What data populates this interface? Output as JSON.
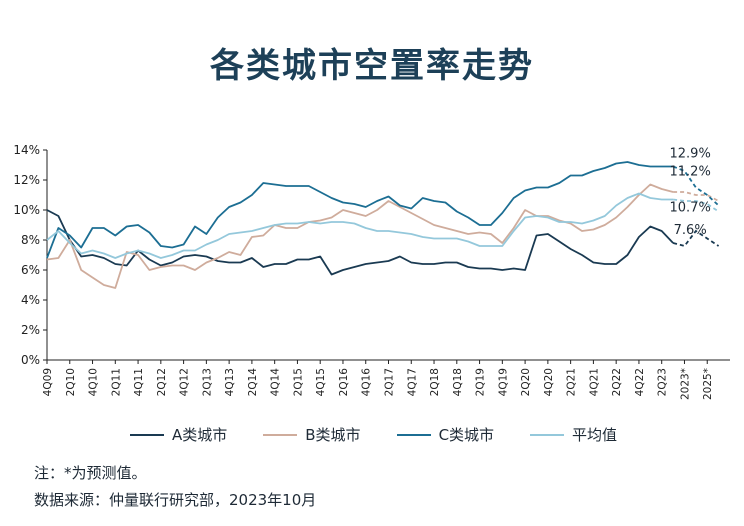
{
  "title": "各类城市空置率走势",
  "note": "注：*为预测值。",
  "source": "数据来源：仲量联行研究部，2023年10月",
  "chart_data": {
    "type": "line",
    "title": "各类城市空置率走势",
    "ylim": [
      0,
      14
    ],
    "yticks": [
      "0%",
      "2%",
      "4%",
      "6%",
      "8%",
      "10%",
      "12%",
      "14%"
    ],
    "ytick_values": [
      0,
      2,
      4,
      6,
      8,
      10,
      12,
      14
    ],
    "x_labels": [
      "4Q09",
      "2Q10",
      "4Q10",
      "2Q11",
      "4Q11",
      "2Q12",
      "4Q12",
      "2Q13",
      "4Q13",
      "2Q14",
      "4Q14",
      "2Q15",
      "4Q15",
      "2Q16",
      "4Q16",
      "2Q17",
      "4Q17",
      "2Q18",
      "4Q18",
      "2Q19",
      "4Q19",
      "2Q20",
      "4Q20",
      "2Q21",
      "4Q21",
      "2Q22",
      "4Q22",
      "2Q23",
      "2023*",
      "2025*"
    ],
    "x_label_positions": [
      0,
      2,
      4,
      6,
      8,
      10,
      12,
      14,
      16,
      18,
      20,
      22,
      24,
      26,
      28,
      30,
      32,
      34,
      36,
      38,
      40,
      42,
      44,
      46,
      48,
      50,
      52,
      54,
      56,
      58
    ],
    "forecast_start": 55,
    "x_max": 60,
    "annotations": [
      "12.9%",
      "11.2%",
      "10.7%",
      "7.6%"
    ],
    "grid": false,
    "legend_position": "bottom",
    "series": [
      {
        "name": "A类城市",
        "color": "#1a3a52",
        "values": [
          10.0,
          9.6,
          8.0,
          6.9,
          7.0,
          6.8,
          6.4,
          6.3,
          7.3,
          6.7,
          6.3,
          6.5,
          6.9,
          7.0,
          6.9,
          6.6,
          6.5,
          6.5,
          6.8,
          6.2,
          6.4,
          6.4,
          6.7,
          6.7,
          6.9,
          5.7,
          6.0,
          6.2,
          6.4,
          6.5,
          6.6,
          6.9,
          6.5,
          6.4,
          6.4,
          6.5,
          6.5,
          6.2,
          6.1,
          6.1,
          6.0,
          6.1,
          6.0,
          8.3,
          8.4,
          7.9,
          7.4,
          7.0,
          6.5,
          6.4,
          6.4,
          7.0,
          8.2,
          8.9,
          8.6,
          7.8,
          7.6,
          8.6,
          8.1,
          7.6
        ]
      },
      {
        "name": "B类城市",
        "color": "#cfac9c",
        "values": [
          6.7,
          6.8,
          8.0,
          6.0,
          5.5,
          5.0,
          4.8,
          7.2,
          7.0,
          6.0,
          6.2,
          6.3,
          6.3,
          6.0,
          6.5,
          6.8,
          7.2,
          7.0,
          8.2,
          8.3,
          9.0,
          8.8,
          8.8,
          9.2,
          9.3,
          9.5,
          10.0,
          9.8,
          9.6,
          10.0,
          10.6,
          10.2,
          9.8,
          9.4,
          9.0,
          8.8,
          8.6,
          8.4,
          8.5,
          8.4,
          7.8,
          8.8,
          10.0,
          9.6,
          9.6,
          9.3,
          9.1,
          8.6,
          8.7,
          9.0,
          9.5,
          10.2,
          11.0,
          11.7,
          11.4,
          11.2,
          11.2,
          11.0,
          11.0,
          10.6
        ]
      },
      {
        "name": "C类城市",
        "color": "#1c6e93",
        "values": [
          6.8,
          8.8,
          8.3,
          7.5,
          8.8,
          8.8,
          8.3,
          8.9,
          9.0,
          8.5,
          7.6,
          7.5,
          7.7,
          8.9,
          8.4,
          9.5,
          10.2,
          10.5,
          11.0,
          11.8,
          11.7,
          11.6,
          11.6,
          11.6,
          11.2,
          10.8,
          10.5,
          10.4,
          10.2,
          10.6,
          10.9,
          10.3,
          10.1,
          10.8,
          10.6,
          10.5,
          9.9,
          9.5,
          9.0,
          9.0,
          9.8,
          10.8,
          11.3,
          11.5,
          11.5,
          11.8,
          12.3,
          12.3,
          12.6,
          12.8,
          13.1,
          13.2,
          13.0,
          12.9,
          12.9,
          12.9,
          12.6,
          11.5,
          11.0,
          10.3
        ]
      },
      {
        "name": "平均值",
        "color": "#94c8db",
        "values": [
          8.0,
          8.6,
          7.8,
          7.1,
          7.3,
          7.1,
          6.8,
          7.1,
          7.3,
          7.1,
          6.8,
          7.0,
          7.3,
          7.3,
          7.7,
          8.0,
          8.4,
          8.5,
          8.6,
          8.8,
          9.0,
          9.1,
          9.1,
          9.2,
          9.1,
          9.2,
          9.2,
          9.1,
          8.8,
          8.6,
          8.6,
          8.5,
          8.4,
          8.2,
          8.1,
          8.1,
          8.1,
          7.9,
          7.6,
          7.6,
          7.6,
          8.6,
          9.5,
          9.6,
          9.5,
          9.2,
          9.2,
          9.1,
          9.3,
          9.6,
          10.3,
          10.8,
          11.1,
          10.8,
          10.7,
          10.7,
          10.6,
          10.6,
          10.4,
          9.9
        ]
      }
    ]
  }
}
